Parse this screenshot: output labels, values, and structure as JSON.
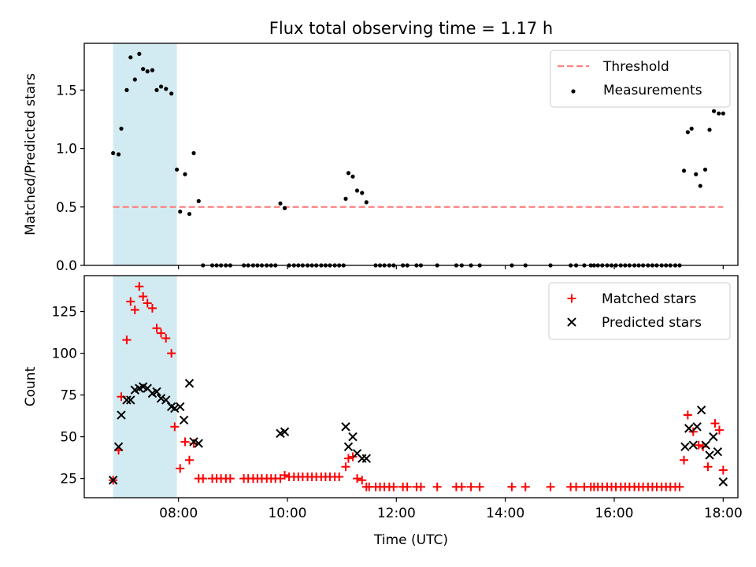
{
  "title": "Flux total observing time = 1.17 h",
  "colors": {
    "threshold": "#ff8080",
    "measurement": "#000000",
    "matched": "#ff0000",
    "predicted": "#000000",
    "shade": "#add8e6"
  },
  "chart_data": [
    {
      "type": "scatter",
      "ylabel": "Matched/Predicted stars",
      "xlabel": "",
      "x_unit": "hours UTC",
      "xlim": [
        6.27,
        18.27
      ],
      "ylim": [
        0,
        1.9
      ],
      "yticks": [
        0.0,
        0.5,
        1.0,
        1.5
      ],
      "ytick_labels": [
        "0.0",
        "0.5",
        "1.0",
        "1.5"
      ],
      "xticks": [
        8,
        10,
        12,
        14,
        16,
        18
      ],
      "shaded_span": [
        6.8,
        7.97
      ],
      "legend": {
        "position": "upper right",
        "entries": [
          "Threshold",
          "Measurements"
        ]
      },
      "threshold": {
        "name": "Threshold",
        "y": 0.5,
        "x_range": [
          6.8,
          18.0
        ]
      },
      "series": [
        {
          "name": "Measurements",
          "x": [
            6.8,
            6.9,
            6.95,
            7.05,
            7.12,
            7.2,
            7.28,
            7.35,
            7.43,
            7.52,
            7.6,
            7.68,
            7.77,
            7.87,
            7.97,
            8.03,
            8.12,
            8.2,
            8.28,
            8.37,
            8.45,
            8.62,
            8.7,
            8.78,
            8.87,
            8.95,
            9.2,
            9.28,
            9.37,
            9.45,
            9.53,
            9.62,
            9.7,
            9.78,
            9.87,
            9.95,
            10.03,
            10.12,
            10.2,
            10.28,
            10.37,
            10.45,
            10.53,
            10.62,
            10.7,
            10.78,
            10.87,
            10.95,
            11.03,
            11.07,
            11.12,
            11.2,
            11.28,
            11.37,
            11.45,
            11.62,
            11.7,
            11.78,
            11.87,
            11.95,
            12.12,
            12.2,
            12.37,
            12.45,
            12.75,
            13.1,
            13.2,
            13.37,
            13.53,
            14.12,
            14.37,
            14.83,
            15.2,
            15.3,
            15.45,
            15.57,
            15.63,
            15.7,
            15.78,
            15.87,
            15.95,
            16.03,
            16.12,
            16.2,
            16.28,
            16.37,
            16.45,
            16.53,
            16.62,
            16.7,
            16.78,
            16.87,
            16.95,
            17.03,
            17.12,
            17.2,
            17.28,
            17.35,
            17.42,
            17.5,
            17.58,
            17.67,
            17.75,
            17.83,
            17.92,
            18.0
          ],
          "y": [
            0.96,
            0.95,
            1.17,
            1.5,
            1.78,
            1.59,
            1.81,
            1.68,
            1.66,
            1.67,
            1.5,
            1.53,
            1.51,
            1.47,
            0.82,
            0.46,
            0.78,
            0.44,
            0.96,
            0.55,
            0.0,
            0.0,
            0.0,
            0.0,
            0.0,
            0.0,
            0.0,
            0.0,
            0.0,
            0.0,
            0.0,
            0.0,
            0.0,
            0.0,
            0.53,
            0.49,
            0.0,
            0.0,
            0.0,
            0.0,
            0.0,
            0.0,
            0.0,
            0.0,
            0.0,
            0.0,
            0.0,
            0.0,
            0.0,
            0.57,
            0.79,
            0.76,
            0.64,
            0.62,
            0.54,
            0.0,
            0.0,
            0.0,
            0.0,
            0.0,
            0.0,
            0.0,
            0.0,
            0.0,
            0.0,
            0.0,
            0.0,
            0.0,
            0.0,
            0.0,
            0.0,
            0.0,
            0.0,
            0.0,
            0.0,
            0.0,
            0.0,
            0.0,
            0.0,
            0.0,
            0.0,
            0.0,
            0.0,
            0.0,
            0.0,
            0.0,
            0.0,
            0.0,
            0.0,
            0.0,
            0.0,
            0.0,
            0.0,
            0.0,
            0.0,
            0.0,
            0.81,
            1.14,
            1.17,
            0.78,
            0.68,
            0.82,
            1.16,
            1.32,
            1.3,
            1.3
          ]
        }
      ]
    },
    {
      "type": "scatter",
      "ylabel": "Count",
      "xlabel": "Time (UTC)",
      "x_unit": "hours UTC",
      "xlim": [
        6.27,
        18.27
      ],
      "ylim": [
        13.5,
        146.5
      ],
      "yticks": [
        25,
        50,
        75,
        100,
        125
      ],
      "ytick_labels": [
        "25",
        "50",
        "75",
        "100",
        "125"
      ],
      "xticks": [
        8,
        10,
        12,
        14,
        16,
        18
      ],
      "xtick_labels": [
        "08:00",
        "10:00",
        "12:00",
        "14:00",
        "16:00",
        "18:00"
      ],
      "shaded_span": [
        6.8,
        7.97
      ],
      "legend": {
        "position": "upper right",
        "entries": [
          "Matched stars",
          "Predicted stars"
        ]
      },
      "series": [
        {
          "name": "Matched stars",
          "marker": "+",
          "x": [
            6.8,
            6.9,
            6.95,
            7.05,
            7.12,
            7.2,
            7.28,
            7.35,
            7.43,
            7.52,
            7.6,
            7.68,
            7.77,
            7.87,
            7.93,
            8.03,
            8.12,
            8.2,
            8.28,
            8.37,
            8.45,
            8.62,
            8.7,
            8.78,
            8.87,
            8.95,
            9.2,
            9.28,
            9.37,
            9.45,
            9.53,
            9.62,
            9.7,
            9.78,
            9.87,
            9.95,
            10.03,
            10.12,
            10.2,
            10.28,
            10.37,
            10.45,
            10.53,
            10.62,
            10.7,
            10.78,
            10.87,
            10.95,
            11.07,
            11.12,
            11.2,
            11.28,
            11.37,
            11.45,
            11.5,
            11.62,
            11.7,
            11.78,
            11.87,
            11.95,
            12.12,
            12.2,
            12.37,
            12.45,
            12.75,
            13.1,
            13.2,
            13.37,
            13.53,
            14.12,
            14.37,
            14.83,
            15.2,
            15.3,
            15.45,
            15.57,
            15.63,
            15.7,
            15.78,
            15.87,
            15.95,
            16.03,
            16.12,
            16.2,
            16.28,
            16.37,
            16.45,
            16.53,
            16.62,
            16.7,
            16.78,
            16.87,
            16.95,
            17.03,
            17.12,
            17.2,
            17.28,
            17.35,
            17.45,
            17.55,
            17.63,
            17.72,
            17.85,
            17.93,
            18.0
          ],
          "y": [
            24,
            42,
            74,
            108,
            131,
            126,
            140,
            134,
            130,
            127,
            115,
            112,
            109,
            100,
            56,
            31,
            47,
            36,
            46,
            25,
            25,
            25,
            25,
            25,
            25,
            25,
            25,
            25,
            25,
            25,
            25,
            25,
            25,
            25,
            25,
            27,
            26,
            26,
            26,
            26,
            26,
            26,
            26,
            26,
            26,
            26,
            26,
            26,
            32,
            37,
            38,
            25,
            24,
            20,
            20,
            20,
            20,
            20,
            20,
            20,
            20,
            20,
            20,
            20,
            20,
            20,
            20,
            20,
            20,
            20,
            20,
            20,
            20,
            20,
            20,
            20,
            20,
            20,
            20,
            20,
            20,
            20,
            20,
            20,
            20,
            20,
            20,
            20,
            20,
            20,
            20,
            20,
            20,
            20,
            20,
            20,
            36,
            63,
            53,
            45,
            44,
            32,
            58,
            54,
            30
          ]
        },
        {
          "name": "Predicted stars",
          "marker": "x",
          "x": [
            6.8,
            6.9,
            6.95,
            7.05,
            7.12,
            7.2,
            7.28,
            7.35,
            7.43,
            7.52,
            7.6,
            7.68,
            7.77,
            7.87,
            7.93,
            8.03,
            8.1,
            8.2,
            8.28,
            8.37,
            9.87,
            9.95,
            11.07,
            11.12,
            11.2,
            11.28,
            11.37,
            11.45,
            17.3,
            17.37,
            17.45,
            17.52,
            17.6,
            17.68,
            17.75,
            17.82,
            17.9,
            18.0
          ],
          "y": [
            24,
            44,
            63,
            72,
            72,
            78,
            79,
            80,
            79,
            76,
            77,
            73,
            72,
            68,
            67,
            68,
            60,
            82,
            47,
            46,
            52,
            53,
            56,
            44,
            50,
            40,
            37,
            37,
            44,
            55,
            45,
            56,
            66,
            45,
            39,
            50,
            41,
            23
          ]
        }
      ]
    }
  ]
}
